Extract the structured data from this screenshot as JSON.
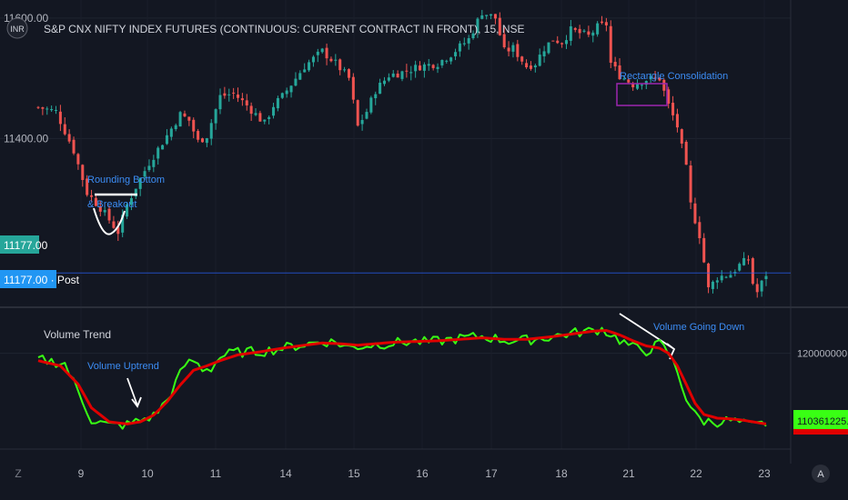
{
  "header": {
    "badge": "INR",
    "title": "S&P CNX NIFTY INDEX FUTURES (CONTINUOUS: CURRENT CONTRACT IN FRONT), 15, NSE"
  },
  "price_panel": {
    "price_tag": "11177.00",
    "post_tag": "11177.00 · Post",
    "annotations": {
      "rounding_bottom_line1": "Rounding Bottom",
      "rounding_bottom_line2": "& Breakout",
      "rectangle": "Rectangle Consolidation"
    }
  },
  "volume_panel": {
    "title": "Volume Trend",
    "annotations": {
      "uptrend": "Volume Uptrend",
      "down": "Volume Going Down"
    },
    "value_tag": "110361225.00"
  },
  "footer": {
    "left_icon": "Z",
    "right_icon": "A"
  },
  "colors": {
    "background": "#131722",
    "up": "#26a69a",
    "down": "#ef5350",
    "volume_line": "#39ff14",
    "volume_ma": "#e00000",
    "annotation": "#3c8df5",
    "rectangle": "#9c27b0",
    "price_line": "#2962ff"
  },
  "chart_data": [
    {
      "type": "candlestick",
      "title": "S&P CNX NIFTY INDEX FUTURES (CONTINUOUS: CURRENT CONTRACT IN FRONT), 15, NSE",
      "y_ticks": [
        11400,
        11600
      ],
      "y_tick_labels": [
        "11400.00",
        "11600.00"
      ],
      "x_ticks": [
        "9",
        "10",
        "11",
        "14",
        "15",
        "16",
        "17",
        "18",
        "21",
        "22",
        "23"
      ],
      "ylim": [
        11120,
        11630
      ],
      "last_price": 11177,
      "close_path": [
        [
          0,
          11452
        ],
        [
          4,
          11445
        ],
        [
          8,
          11380
        ],
        [
          11,
          11310
        ],
        [
          14,
          11285
        ],
        [
          16,
          11265
        ],
        [
          18,
          11245
        ],
        [
          20,
          11290
        ],
        [
          22,
          11320
        ],
        [
          25,
          11360
        ],
        [
          29,
          11405
        ],
        [
          32,
          11440
        ],
        [
          34,
          11430
        ],
        [
          36,
          11395
        ],
        [
          38,
          11405
        ],
        [
          41,
          11470
        ],
        [
          44,
          11475
        ],
        [
          47,
          11455
        ],
        [
          51,
          11425
        ],
        [
          53,
          11455
        ],
        [
          55,
          11470
        ],
        [
          60,
          11520
        ],
        [
          64,
          11545
        ],
        [
          67,
          11525
        ],
        [
          70,
          11500
        ],
        [
          72,
          11420
        ],
        [
          74,
          11445
        ],
        [
          76,
          11480
        ],
        [
          79,
          11505
        ],
        [
          82,
          11510
        ],
        [
          86,
          11520
        ],
        [
          90,
          11525
        ],
        [
          93,
          11540
        ],
        [
          97,
          11565
        ],
        [
          100,
          11610
        ],
        [
          103,
          11600
        ],
        [
          105,
          11545
        ],
        [
          107,
          11550
        ],
        [
          110,
          11520
        ],
        [
          112,
          11525
        ],
        [
          114,
          11550
        ],
        [
          116,
          11565
        ],
        [
          118,
          11560
        ],
        [
          120,
          11580
        ],
        [
          122,
          11575
        ],
        [
          124,
          11570
        ],
        [
          126,
          11585
        ],
        [
          128,
          11590
        ],
        [
          129,
          11525
        ],
        [
          131,
          11505
        ],
        [
          134,
          11490
        ],
        [
          137,
          11498
        ],
        [
          140,
          11500
        ],
        [
          142,
          11455
        ],
        [
          144,
          11420
        ],
        [
          146,
          11350
        ],
        [
          147,
          11290
        ],
        [
          149,
          11240
        ],
        [
          151,
          11150
        ],
        [
          153,
          11170
        ],
        [
          156,
          11175
        ],
        [
          158,
          11190
        ],
        [
          160,
          11200
        ],
        [
          161,
          11160
        ],
        [
          162,
          11145
        ],
        [
          164,
          11175
        ]
      ]
    },
    {
      "type": "line",
      "title": "Volume Trend",
      "y_ticks": [
        120000000
      ],
      "y_tick_labels": [
        "120000000.00"
      ],
      "last_value": 110361225,
      "series": [
        {
          "values_path": [
            [
              0,
              119200000
            ],
            [
              6,
              118600000
            ],
            [
              9,
              114800000
            ],
            [
              12,
              111000000
            ],
            [
              16,
              110200000
            ],
            [
              20,
              110300000
            ],
            [
              23,
              110900000
            ],
            [
              26,
              111500000
            ],
            [
              29,
              113600000
            ],
            [
              31,
              116000000
            ],
            [
              33,
              118400000
            ],
            [
              35,
              119000000
            ],
            [
              37,
              117900000
            ],
            [
              39,
              118000000
            ],
            [
              41,
              119500000
            ],
            [
              44,
              120100000
            ],
            [
              48,
              120200000
            ],
            [
              51,
              120300000
            ],
            [
              55,
              120700000
            ],
            [
              60,
              121200000
            ],
            [
              64,
              121600000
            ],
            [
              67,
              121500000
            ],
            [
              70,
              120800000
            ],
            [
              73,
              121000000
            ],
            [
              76,
              121200000
            ],
            [
              80,
              121400000
            ],
            [
              84,
              121600000
            ],
            [
              88,
              121500000
            ],
            [
              92,
              121800000
            ],
            [
              96,
              122100000
            ],
            [
              100,
              122300000
            ],
            [
              103,
              122000000
            ],
            [
              106,
              121700000
            ],
            [
              110,
              121800000
            ],
            [
              114,
              122100000
            ],
            [
              118,
              122500000
            ],
            [
              121,
              122800000
            ],
            [
              124,
              123000000
            ],
            [
              127,
              123300000
            ],
            [
              129,
              122600000
            ],
            [
              131,
              121800000
            ],
            [
              134,
              120800000
            ],
            [
              137,
              120300000
            ],
            [
              140,
              121300000
            ],
            [
              142,
              120000000
            ],
            [
              144,
              117500000
            ],
            [
              146,
              114000000
            ],
            [
              148,
              111600000
            ],
            [
              150,
              110800000
            ],
            [
              153,
              110700000
            ],
            [
              156,
              110900000
            ],
            [
              159,
              110400000
            ],
            [
              161,
              110100000
            ],
            [
              164,
              110500000
            ]
          ]
        },
        {
          "values_path": [
            [
              0,
              119000000
            ],
            [
              5,
              118300000
            ],
            [
              9,
              115800000
            ],
            [
              12,
              112600000
            ],
            [
              16,
              110700000
            ],
            [
              20,
              110400000
            ],
            [
              23,
              110700000
            ],
            [
              26,
              111600000
            ],
            [
              29,
              113400000
            ],
            [
              32,
              115700000
            ],
            [
              35,
              117700000
            ],
            [
              38,
              118300000
            ],
            [
              41,
              119000000
            ],
            [
              45,
              119800000
            ],
            [
              50,
              120200000
            ],
            [
              55,
              120700000
            ],
            [
              60,
              121100000
            ],
            [
              64,
              121400000
            ],
            [
              68,
              121300000
            ],
            [
              72,
              121100000
            ],
            [
              76,
              121300000
            ],
            [
              80,
              121500000
            ],
            [
              85,
              121600000
            ],
            [
              90,
              121700000
            ],
            [
              95,
              121900000
            ],
            [
              100,
              122100000
            ],
            [
              105,
              121900000
            ],
            [
              110,
              121900000
            ],
            [
              115,
              122200000
            ],
            [
              120,
              122600000
            ],
            [
              125,
              123000000
            ],
            [
              128,
              123100000
            ],
            [
              131,
              122500000
            ],
            [
              134,
              121700000
            ],
            [
              137,
              121000000
            ],
            [
              140,
              120700000
            ],
            [
              142,
              120000000
            ],
            [
              144,
              118300000
            ],
            [
              146,
              115800000
            ],
            [
              148,
              113200000
            ],
            [
              150,
              111700000
            ],
            [
              153,
              111200000
            ],
            [
              156,
              111100000
            ],
            [
              159,
              110900000
            ],
            [
              162,
              110600000
            ],
            [
              164,
              110400000
            ]
          ]
        }
      ]
    }
  ]
}
